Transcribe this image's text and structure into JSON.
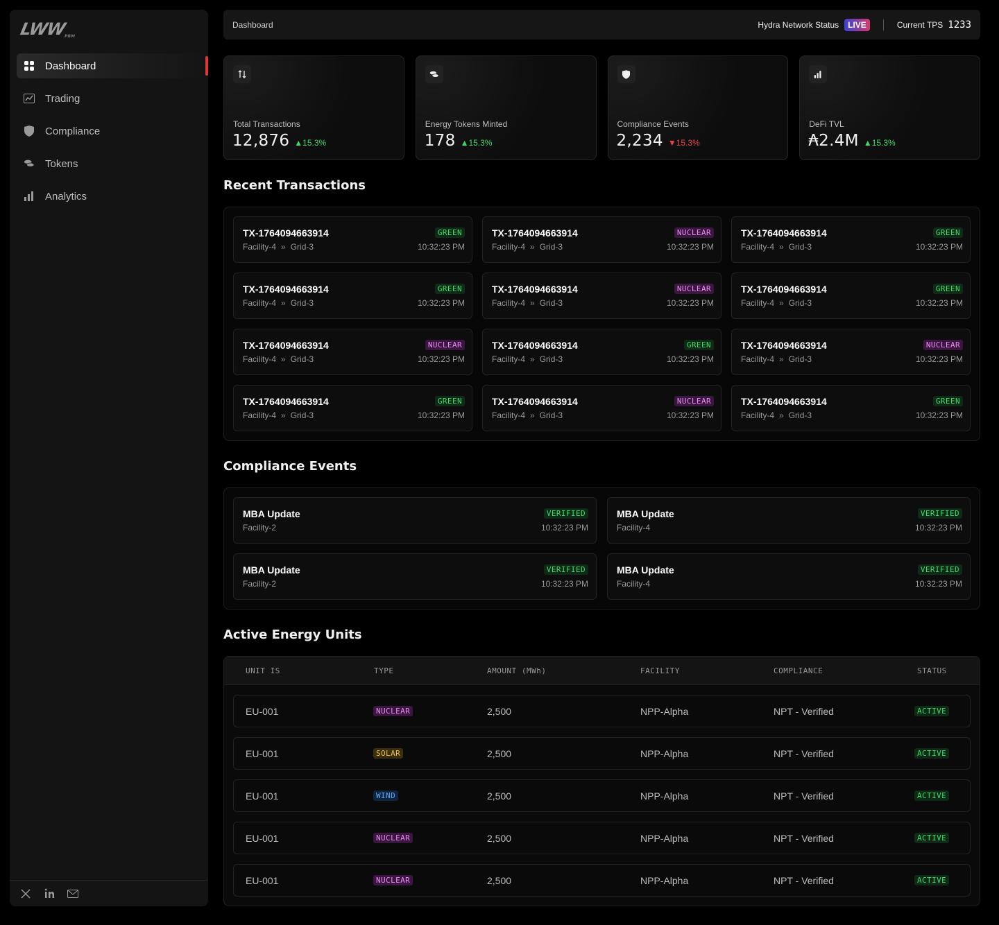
{
  "sidebar": {
    "logo": "LWW",
    "logo_sub": "PRM",
    "items": [
      {
        "label": "Dashboard",
        "icon": "grid-icon",
        "active": true
      },
      {
        "label": "Trading",
        "icon": "chart-icon"
      },
      {
        "label": "Compliance",
        "icon": "shield-icon"
      },
      {
        "label": "Tokens",
        "icon": "coins-icon"
      },
      {
        "label": "Analytics",
        "icon": "bar-chart-icon"
      }
    ],
    "footer_icons": [
      "x-icon",
      "linkedin-icon",
      "mail-icon"
    ]
  },
  "header": {
    "breadcrumb": "Dashboard",
    "network_status_label": "Hydra Network Status",
    "live_label": "LIVE",
    "tps_label": "Current TPS",
    "tps_value": "1233"
  },
  "stats": [
    {
      "label": "Total Transactions",
      "value": "12,876",
      "delta": "15.3%",
      "direction": "up",
      "icon": "swap-icon"
    },
    {
      "label": "Energy Tokens Minted",
      "value": "178",
      "delta": "15.3%",
      "direction": "up",
      "icon": "coins-icon"
    },
    {
      "label": "Compliance Events",
      "value": "2,234",
      "delta": "15.3%",
      "direction": "down",
      "icon": "shield-icon"
    },
    {
      "label": "DeFi TVL",
      "value": "₳2.4M",
      "delta": "15.3%",
      "direction": "up",
      "icon": "bar-chart-icon"
    }
  ],
  "recent_transactions": {
    "title": "Recent Transactions",
    "items": [
      {
        "id": "TX-1764094663914",
        "from": "Facility-4",
        "to": "Grid-3",
        "type": "GREEN",
        "time": "10:32:23 PM"
      },
      {
        "id": "TX-1764094663914",
        "from": "Facility-4",
        "to": "Grid-3",
        "type": "NUCLEAR",
        "time": "10:32:23 PM"
      },
      {
        "id": "TX-1764094663914",
        "from": "Facility-4",
        "to": "Grid-3",
        "type": "GREEN",
        "time": "10:32:23 PM"
      },
      {
        "id": "TX-1764094663914",
        "from": "Facility-4",
        "to": "Grid-3",
        "type": "GREEN",
        "time": "10:32:23 PM"
      },
      {
        "id": "TX-1764094663914",
        "from": "Facility-4",
        "to": "Grid-3",
        "type": "NUCLEAR",
        "time": "10:32:23 PM"
      },
      {
        "id": "TX-1764094663914",
        "from": "Facility-4",
        "to": "Grid-3",
        "type": "GREEN",
        "time": "10:32:23 PM"
      },
      {
        "id": "TX-1764094663914",
        "from": "Facility-4",
        "to": "Grid-3",
        "type": "NUCLEAR",
        "time": "10:32:23 PM"
      },
      {
        "id": "TX-1764094663914",
        "from": "Facility-4",
        "to": "Grid-3",
        "type": "GREEN",
        "time": "10:32:23 PM"
      },
      {
        "id": "TX-1764094663914",
        "from": "Facility-4",
        "to": "Grid-3",
        "type": "NUCLEAR",
        "time": "10:32:23 PM"
      },
      {
        "id": "TX-1764094663914",
        "from": "Facility-4",
        "to": "Grid-3",
        "type": "GREEN",
        "time": "10:32:23 PM"
      },
      {
        "id": "TX-1764094663914",
        "from": "Facility-4",
        "to": "Grid-3",
        "type": "NUCLEAR",
        "time": "10:32:23 PM"
      },
      {
        "id": "TX-1764094663914",
        "from": "Facility-4",
        "to": "Grid-3",
        "type": "GREEN",
        "time": "10:32:23 PM"
      }
    ]
  },
  "compliance_events": {
    "title": "Compliance Events",
    "items": [
      {
        "title": "MBA Update",
        "facility": "Facility-2",
        "status": "VERIFIED",
        "time": "10:32:23 PM"
      },
      {
        "title": "MBA Update",
        "facility": "Facility-4",
        "status": "VERIFIED",
        "time": "10:32:23 PM"
      },
      {
        "title": "MBA Update",
        "facility": "Facility-2",
        "status": "VERIFIED",
        "time": "10:32:23 PM"
      },
      {
        "title": "MBA Update",
        "facility": "Facility-4",
        "status": "VERIFIED",
        "time": "10:32:23 PM"
      }
    ]
  },
  "energy_units": {
    "title": "Active Energy Units",
    "columns": [
      "UNIT IS",
      "TYPE",
      "AMOUNT (MWh)",
      "FACILITY",
      "COMPLIANCE",
      "STATUS"
    ],
    "rows": [
      {
        "unit": "EU-001",
        "type": "NUCLEAR",
        "amount": "2,500",
        "facility": "NPP-Alpha",
        "compliance": "NPT - Verified",
        "status": "ACTIVE"
      },
      {
        "unit": "EU-001",
        "type": "SOLAR",
        "amount": "2,500",
        "facility": "NPP-Alpha",
        "compliance": "NPT - Verified",
        "status": "ACTIVE"
      },
      {
        "unit": "EU-001",
        "type": "WIND",
        "amount": "2,500",
        "facility": "NPP-Alpha",
        "compliance": "NPT - Verified",
        "status": "ACTIVE"
      },
      {
        "unit": "EU-001",
        "type": "NUCLEAR",
        "amount": "2,500",
        "facility": "NPP-Alpha",
        "compliance": "NPT - Verified",
        "status": "ACTIVE"
      },
      {
        "unit": "EU-001",
        "type": "NUCLEAR",
        "amount": "2,500",
        "facility": "NPP-Alpha",
        "compliance": "NPT - Verified",
        "status": "ACTIVE"
      }
    ]
  },
  "colors": {
    "accent_red": "#e0363b",
    "green": "#3ddc6a",
    "nuclear": "#e98bf0",
    "solar": "#e8c04a",
    "wind": "#5aa9f2",
    "down": "#ef4444"
  }
}
